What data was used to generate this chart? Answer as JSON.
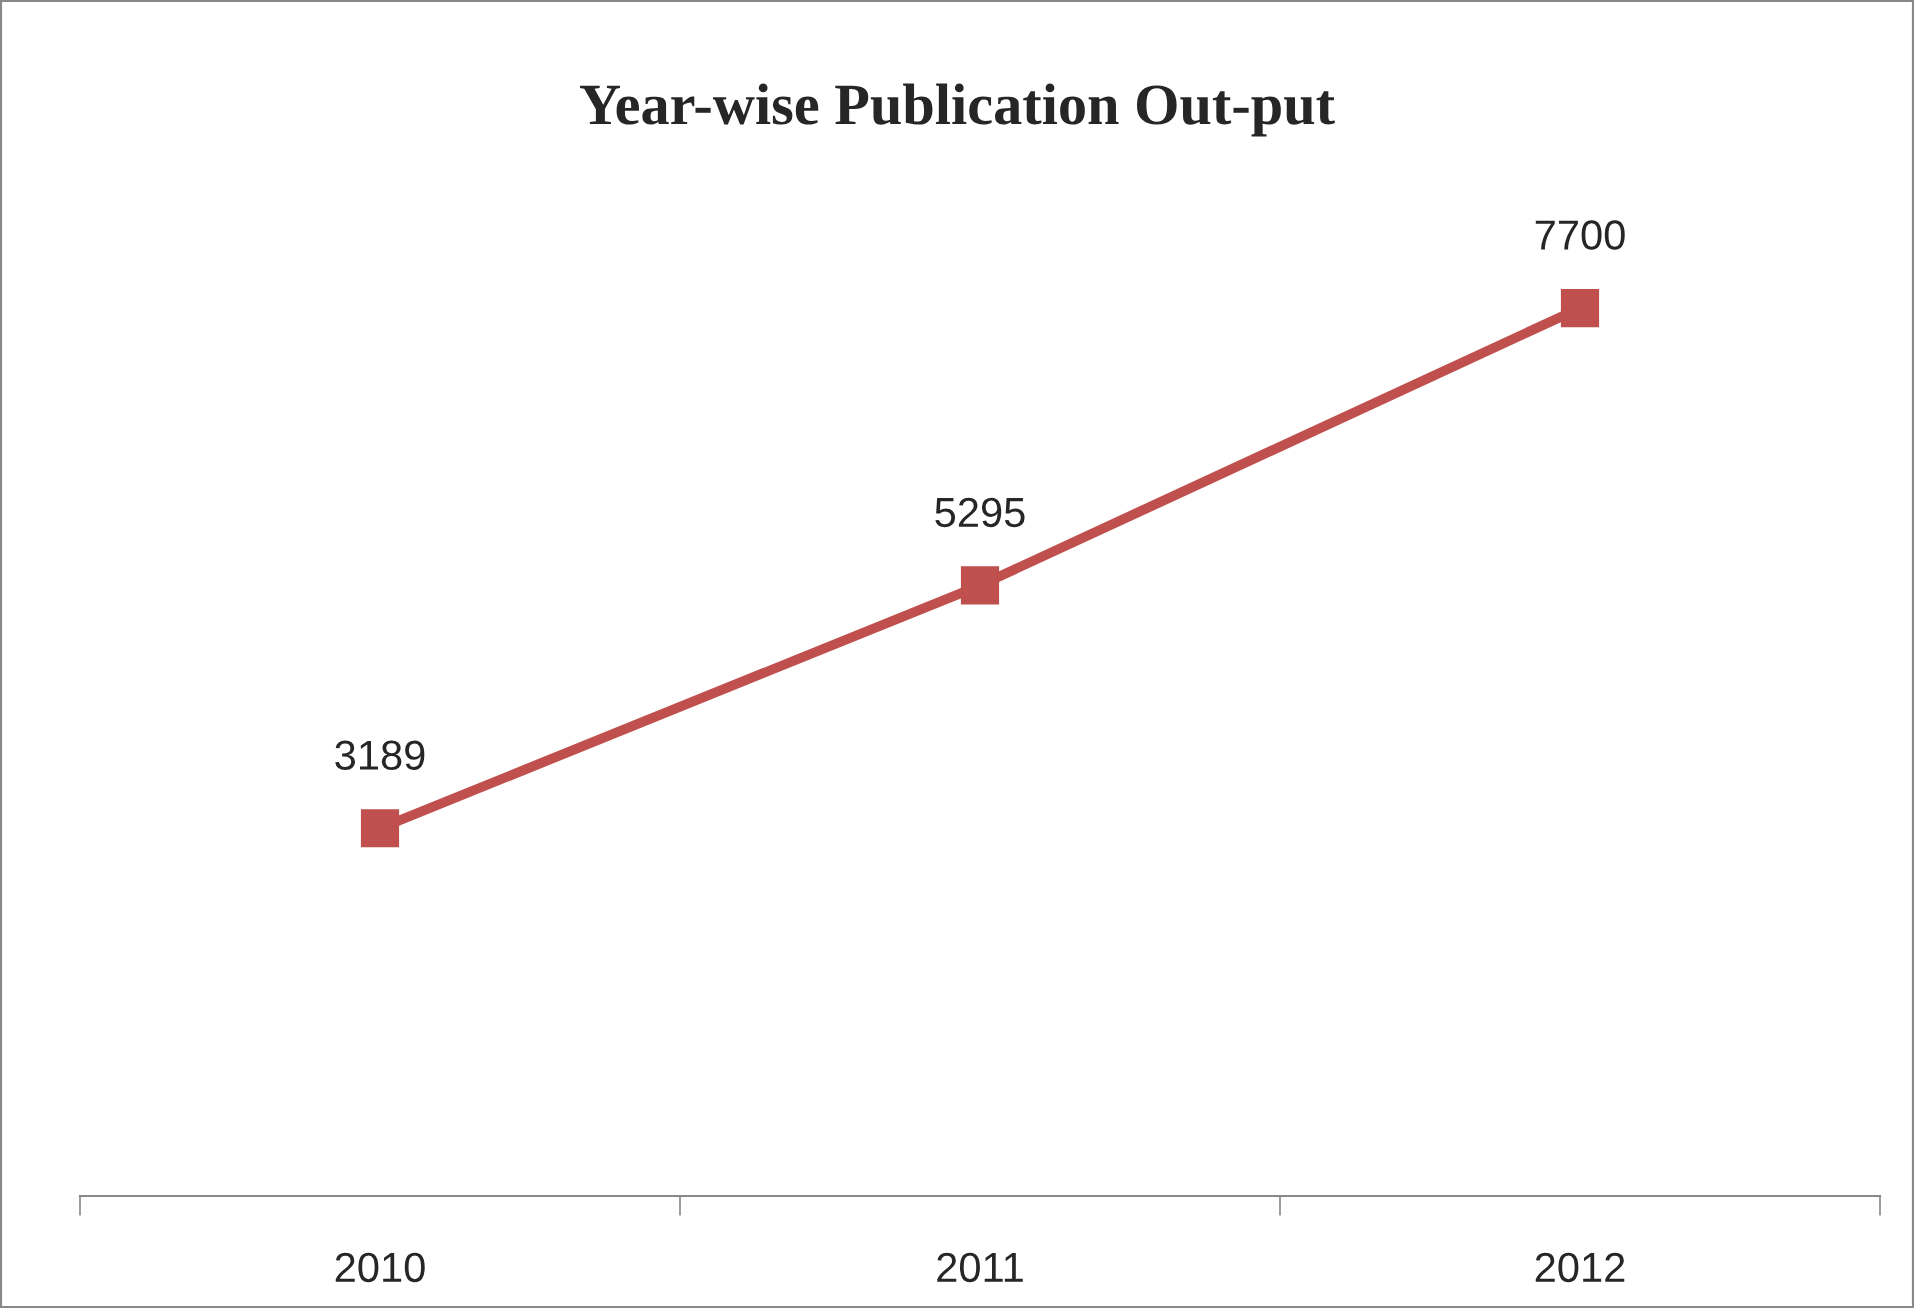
{
  "chart_data": {
    "type": "line",
    "title": "Year-wise Publication Out-put",
    "categories": [
      "2010",
      "2011",
      "2012"
    ],
    "series": [
      {
        "color": "#c0504d",
        "values": [
          3189,
          5295,
          7700
        ]
      }
    ],
    "tick_labels": "x",
    "data_labels": true,
    "marker": "square",
    "line_style": "solid",
    "grid": false,
    "legend": false
  }
}
